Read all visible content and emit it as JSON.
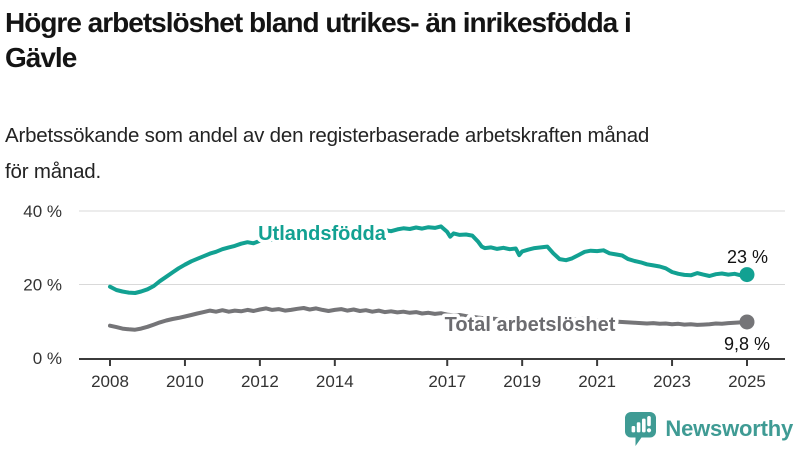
{
  "header": {
    "title_lines": [
      "Högre arbetslöshet bland utrikes- än inrikesfödda i",
      "Gävle"
    ],
    "subtitle_lines": [
      "Arbetssökande som andel av den registerbaserade arbetskraften månad",
      "för månad."
    ]
  },
  "colors": {
    "title_text": "#141414",
    "teal_line": "#12A192",
    "gray_line": "#757578",
    "gray_label": "#6C6C70",
    "gridline": "#d9d9d9",
    "axis": "#3b3b3b",
    "logo_teal": "#3F9B94"
  },
  "chart_data": {
    "type": "line",
    "title": "Högre arbetslöshet bland utrikes- än inrikesfödda i Gävle",
    "subtitle": "Arbetssökande som andel av den registerbaserade arbetskraften månad för månad.",
    "grid": true,
    "legend_position": "inline",
    "x_axis": {
      "range": [
        2008,
        2025.1
      ],
      "ticks": [
        "2008",
        "2010",
        "2012",
        "2014",
        "2017",
        "2019",
        "2021",
        "2023",
        "2025"
      ],
      "tick_years": [
        2008,
        2010,
        2012,
        2014,
        2017,
        2019,
        2021,
        2023,
        2025
      ]
    },
    "y_axis": {
      "range": [
        0,
        43
      ],
      "unit": "%",
      "ticks": [
        {
          "value": 0,
          "label": "0 %"
        },
        {
          "value": 20,
          "label": "20 %"
        },
        {
          "value": 40,
          "label": "40 %"
        }
      ],
      "gridlines": [
        20,
        40
      ]
    },
    "series": [
      {
        "name": "Utlandsfödda",
        "label": "Utlandsfödda",
        "end_label": "23 %",
        "end_value": 23,
        "color": "#12A192",
        "points": [
          [
            2008.0,
            19.4
          ],
          [
            2008.17,
            18.5
          ],
          [
            2008.33,
            18.1
          ],
          [
            2008.5,
            17.8
          ],
          [
            2008.67,
            17.7
          ],
          [
            2008.83,
            18.1
          ],
          [
            2009.0,
            18.7
          ],
          [
            2009.17,
            19.6
          ],
          [
            2009.33,
            20.9
          ],
          [
            2009.5,
            22.1
          ],
          [
            2009.67,
            23.3
          ],
          [
            2009.83,
            24.4
          ],
          [
            2010.0,
            25.4
          ],
          [
            2010.17,
            26.3
          ],
          [
            2010.33,
            27.0
          ],
          [
            2010.5,
            27.7
          ],
          [
            2010.67,
            28.4
          ],
          [
            2010.83,
            28.9
          ],
          [
            2011.0,
            29.6
          ],
          [
            2011.17,
            30.1
          ],
          [
            2011.33,
            30.5
          ],
          [
            2011.5,
            31.1
          ],
          [
            2011.67,
            31.5
          ],
          [
            2011.83,
            31.2
          ],
          [
            2012.0,
            31.9
          ],
          [
            2012.17,
            32.4
          ],
          [
            2012.33,
            32.1
          ],
          [
            2012.5,
            32.7
          ],
          [
            2012.67,
            32.4
          ],
          [
            2012.83,
            32.9
          ],
          [
            2013.0,
            33.2
          ],
          [
            2013.17,
            32.9
          ],
          [
            2013.33,
            33.4
          ],
          [
            2013.5,
            33.1
          ],
          [
            2013.67,
            33.5
          ],
          [
            2013.83,
            33.2
          ],
          [
            2014.0,
            33.7
          ],
          [
            2014.17,
            34.1
          ],
          [
            2014.33,
            33.8
          ],
          [
            2014.5,
            34.3
          ],
          [
            2014.67,
            34.0
          ],
          [
            2014.83,
            34.4
          ],
          [
            2015.0,
            34.6
          ],
          [
            2015.17,
            34.3
          ],
          [
            2015.33,
            34.8
          ],
          [
            2015.5,
            34.5
          ],
          [
            2015.67,
            35.0
          ],
          [
            2015.83,
            35.3
          ],
          [
            2016.0,
            35.1
          ],
          [
            2016.17,
            35.5
          ],
          [
            2016.33,
            35.2
          ],
          [
            2016.5,
            35.6
          ],
          [
            2016.67,
            35.4
          ],
          [
            2016.83,
            35.8
          ],
          [
            2017.0,
            34.3
          ],
          [
            2017.08,
            33.0
          ],
          [
            2017.17,
            33.9
          ],
          [
            2017.33,
            33.5
          ],
          [
            2017.5,
            33.6
          ],
          [
            2017.67,
            33.3
          ],
          [
            2017.83,
            31.6
          ],
          [
            2017.92,
            30.3
          ],
          [
            2018.0,
            29.9
          ],
          [
            2018.17,
            30.1
          ],
          [
            2018.33,
            29.7
          ],
          [
            2018.5,
            30.0
          ],
          [
            2018.67,
            29.6
          ],
          [
            2018.83,
            29.8
          ],
          [
            2018.92,
            28.0
          ],
          [
            2019.0,
            29.0
          ],
          [
            2019.17,
            29.5
          ],
          [
            2019.33,
            29.9
          ],
          [
            2019.5,
            30.1
          ],
          [
            2019.67,
            30.3
          ],
          [
            2019.83,
            28.5
          ],
          [
            2020.0,
            26.9
          ],
          [
            2020.17,
            26.6
          ],
          [
            2020.33,
            27.1
          ],
          [
            2020.5,
            28.0
          ],
          [
            2020.67,
            28.9
          ],
          [
            2020.83,
            29.2
          ],
          [
            2021.0,
            29.1
          ],
          [
            2021.17,
            29.3
          ],
          [
            2021.33,
            28.5
          ],
          [
            2021.5,
            28.2
          ],
          [
            2021.67,
            27.9
          ],
          [
            2021.83,
            26.9
          ],
          [
            2022.0,
            26.4
          ],
          [
            2022.17,
            26.0
          ],
          [
            2022.33,
            25.5
          ],
          [
            2022.5,
            25.2
          ],
          [
            2022.67,
            24.9
          ],
          [
            2022.83,
            24.4
          ],
          [
            2023.0,
            23.4
          ],
          [
            2023.17,
            22.9
          ],
          [
            2023.33,
            22.6
          ],
          [
            2023.5,
            22.5
          ],
          [
            2023.67,
            23.1
          ],
          [
            2023.83,
            22.7
          ],
          [
            2024.0,
            22.3
          ],
          [
            2024.17,
            22.8
          ],
          [
            2024.33,
            23.0
          ],
          [
            2024.5,
            22.7
          ],
          [
            2024.67,
            22.9
          ],
          [
            2024.83,
            22.5
          ],
          [
            2025.0,
            22.7
          ]
        ]
      },
      {
        "name": "Total arbetslöshet",
        "label": "Total arbetslöshet",
        "end_label": "9,8 %",
        "end_value": 9.8,
        "color": "#757578",
        "label_color": "#6C6C70",
        "points": [
          [
            2008.0,
            8.8
          ],
          [
            2008.17,
            8.4
          ],
          [
            2008.33,
            8.0
          ],
          [
            2008.5,
            7.8
          ],
          [
            2008.67,
            7.7
          ],
          [
            2008.83,
            8.0
          ],
          [
            2009.0,
            8.5
          ],
          [
            2009.17,
            9.1
          ],
          [
            2009.33,
            9.7
          ],
          [
            2009.5,
            10.2
          ],
          [
            2009.67,
            10.6
          ],
          [
            2009.83,
            10.9
          ],
          [
            2010.0,
            11.3
          ],
          [
            2010.17,
            11.7
          ],
          [
            2010.33,
            12.1
          ],
          [
            2010.5,
            12.5
          ],
          [
            2010.67,
            12.9
          ],
          [
            2010.83,
            12.6
          ],
          [
            2011.0,
            13.0
          ],
          [
            2011.17,
            12.6
          ],
          [
            2011.33,
            12.9
          ],
          [
            2011.5,
            12.7
          ],
          [
            2011.67,
            13.1
          ],
          [
            2011.83,
            12.8
          ],
          [
            2012.0,
            13.2
          ],
          [
            2012.17,
            13.5
          ],
          [
            2012.33,
            13.1
          ],
          [
            2012.5,
            13.3
          ],
          [
            2012.67,
            12.9
          ],
          [
            2012.83,
            13.1
          ],
          [
            2013.0,
            13.4
          ],
          [
            2013.17,
            13.6
          ],
          [
            2013.33,
            13.2
          ],
          [
            2013.5,
            13.5
          ],
          [
            2013.67,
            13.1
          ],
          [
            2013.83,
            12.8
          ],
          [
            2014.0,
            13.1
          ],
          [
            2014.17,
            13.3
          ],
          [
            2014.33,
            12.9
          ],
          [
            2014.5,
            13.2
          ],
          [
            2014.67,
            12.8
          ],
          [
            2014.83,
            13.0
          ],
          [
            2015.0,
            12.6
          ],
          [
            2015.17,
            12.9
          ],
          [
            2015.33,
            12.5
          ],
          [
            2015.5,
            12.7
          ],
          [
            2015.67,
            12.4
          ],
          [
            2015.83,
            12.6
          ],
          [
            2016.0,
            12.3
          ],
          [
            2016.17,
            12.5
          ],
          [
            2016.33,
            12.1
          ],
          [
            2016.5,
            12.3
          ],
          [
            2016.67,
            12.0
          ],
          [
            2016.83,
            12.2
          ],
          [
            2017.0,
            11.8
          ],
          [
            2017.17,
            11.6
          ],
          [
            2017.33,
            11.7
          ],
          [
            2017.5,
            11.4
          ],
          [
            2017.67,
            11.2
          ],
          [
            2017.83,
            11.0
          ],
          [
            2018.0,
            10.8
          ],
          [
            2018.33,
            10.6
          ],
          [
            2018.67,
            10.4
          ],
          [
            2019.0,
            10.2
          ],
          [
            2019.33,
            10.1
          ],
          [
            2019.67,
            10.0
          ],
          [
            2020.0,
            10.0
          ],
          [
            2020.33,
            10.5
          ],
          [
            2020.67,
            10.7
          ],
          [
            2021.0,
            10.3
          ],
          [
            2021.33,
            10.0
          ],
          [
            2021.67,
            9.8
          ],
          [
            2022.0,
            9.6
          ],
          [
            2022.17,
            9.5
          ],
          [
            2022.33,
            9.4
          ],
          [
            2022.5,
            9.5
          ],
          [
            2022.67,
            9.3
          ],
          [
            2022.83,
            9.4
          ],
          [
            2023.0,
            9.2
          ],
          [
            2023.17,
            9.3
          ],
          [
            2023.33,
            9.1
          ],
          [
            2023.5,
            9.2
          ],
          [
            2023.67,
            9.0
          ],
          [
            2023.83,
            9.1
          ],
          [
            2024.0,
            9.2
          ],
          [
            2024.17,
            9.4
          ],
          [
            2024.33,
            9.3
          ],
          [
            2024.5,
            9.5
          ],
          [
            2024.67,
            9.6
          ],
          [
            2024.83,
            9.7
          ],
          [
            2025.0,
            9.8
          ]
        ]
      }
    ]
  },
  "footer": {
    "brand": "Newsworthy"
  }
}
